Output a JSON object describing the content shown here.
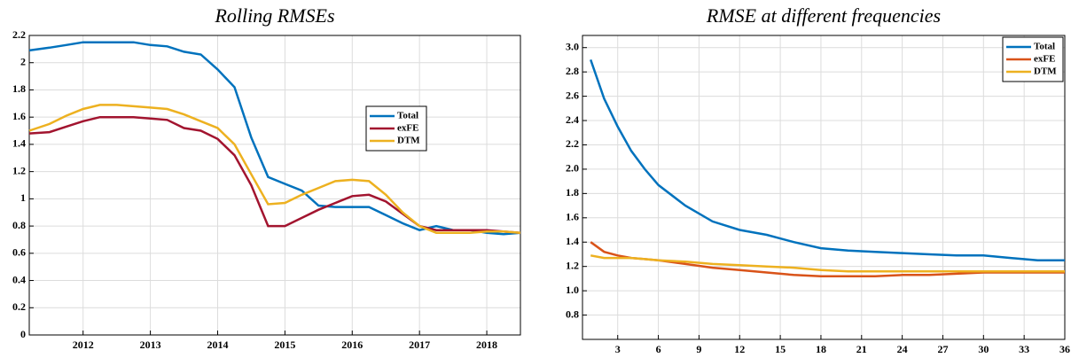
{
  "chart_data": [
    {
      "type": "line",
      "title": "Rolling RMSEs",
      "x": [
        2011.2,
        2011.5,
        2011.75,
        2012,
        2012.25,
        2012.5,
        2012.75,
        2013,
        2013.25,
        2013.5,
        2013.75,
        2014,
        2014.25,
        2014.5,
        2014.75,
        2015,
        2015.25,
        2015.5,
        2015.75,
        2016,
        2016.25,
        2016.5,
        2016.75,
        2017,
        2017.25,
        2017.5,
        2017.75,
        2018,
        2018.25,
        2018.5
      ],
      "series": [
        {
          "name": "Total",
          "color": "#0072bd",
          "values": [
            2.09,
            2.11,
            2.13,
            2.15,
            2.15,
            2.15,
            2.15,
            2.13,
            2.12,
            2.08,
            2.06,
            1.95,
            1.82,
            1.45,
            1.16,
            1.11,
            1.06,
            0.95,
            0.94,
            0.94,
            0.94,
            0.88,
            0.82,
            0.77,
            0.8,
            0.77,
            0.77,
            0.75,
            0.74,
            0.75
          ]
        },
        {
          "name": "exFE",
          "color": "#a2142f",
          "values": [
            1.48,
            1.49,
            1.53,
            1.57,
            1.6,
            1.6,
            1.6,
            1.59,
            1.58,
            1.52,
            1.5,
            1.44,
            1.32,
            1.1,
            0.8,
            0.8,
            0.86,
            0.92,
            0.97,
            1.02,
            1.03,
            0.98,
            0.89,
            0.8,
            0.77,
            0.77,
            0.77,
            0.77,
            0.76,
            0.75
          ]
        },
        {
          "name": "DTM",
          "color": "#edb120",
          "values": [
            1.5,
            1.55,
            1.61,
            1.66,
            1.69,
            1.69,
            1.68,
            1.67,
            1.66,
            1.62,
            1.57,
            1.52,
            1.4,
            1.18,
            0.96,
            0.97,
            1.03,
            1.08,
            1.13,
            1.14,
            1.13,
            1.03,
            0.9,
            0.8,
            0.75,
            0.75,
            0.75,
            0.76,
            0.76,
            0.75
          ]
        }
      ],
      "xlim": [
        2011.2,
        2018.5
      ],
      "xticks": [
        2012,
        2013,
        2014,
        2015,
        2016,
        2017,
        2018
      ],
      "ylim": [
        0,
        2.2
      ],
      "yticks": [
        0,
        0.2,
        0.4,
        0.6,
        0.8,
        1,
        1.2,
        1.4,
        1.6,
        1.8,
        2,
        2.2
      ],
      "grid": true,
      "legend": "center right"
    },
    {
      "type": "line",
      "title": "RMSE at different frequencies",
      "x": [
        1,
        2,
        3,
        4,
        5,
        6,
        8,
        10,
        12,
        14,
        16,
        18,
        20,
        22,
        24,
        26,
        28,
        30,
        32,
        34,
        36
      ],
      "series": [
        {
          "name": "Total",
          "color": "#0072bd",
          "values": [
            2.9,
            2.58,
            2.35,
            2.15,
            2.0,
            1.87,
            1.7,
            1.57,
            1.5,
            1.46,
            1.4,
            1.35,
            1.33,
            1.32,
            1.31,
            1.3,
            1.29,
            1.29,
            1.27,
            1.25,
            1.25
          ]
        },
        {
          "name": "exFE",
          "color": "#d95319",
          "values": [
            1.4,
            1.32,
            1.29,
            1.27,
            1.26,
            1.25,
            1.22,
            1.19,
            1.17,
            1.15,
            1.13,
            1.12,
            1.12,
            1.12,
            1.13,
            1.13,
            1.14,
            1.15,
            1.15,
            1.15,
            1.15
          ]
        },
        {
          "name": "DTM",
          "color": "#edb120",
          "values": [
            1.29,
            1.27,
            1.27,
            1.27,
            1.26,
            1.25,
            1.24,
            1.22,
            1.21,
            1.2,
            1.19,
            1.17,
            1.16,
            1.16,
            1.16,
            1.16,
            1.16,
            1.16,
            1.16,
            1.16,
            1.16
          ]
        }
      ],
      "xlim": [
        0.4,
        36
      ],
      "xticks": [
        3,
        6,
        9,
        12,
        15,
        18,
        21,
        24,
        27,
        30,
        33,
        36
      ],
      "ylim": [
        0.6,
        3.1
      ],
      "yticks": [
        0.8,
        {
          "value": 1.0,
          "label": "1.0"
        },
        1.2,
        1.4,
        1.6,
        1.8,
        {
          "value": 2.0,
          "label": "2.0"
        },
        2.2,
        2.4,
        2.6,
        2.8,
        {
          "value": 3.0,
          "label": "3.0"
        }
      ],
      "grid": true,
      "legend": "upper right"
    }
  ]
}
